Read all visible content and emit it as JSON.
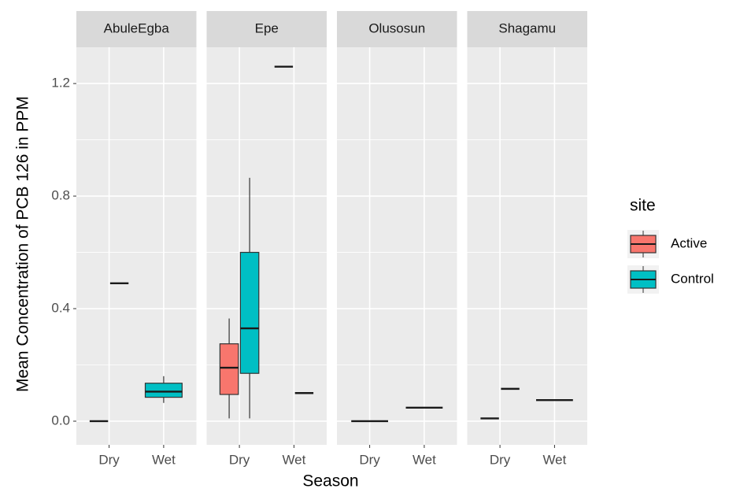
{
  "chart_data": {
    "type": "box",
    "x_label": "Season",
    "y_label": "Mean Concentration of PCB 126 in PPM",
    "categories": [
      "Dry",
      "Wet"
    ],
    "ylim": [
      -0.084,
      1.329
    ],
    "yticks": [
      {
        "value": 0,
        "label": "0.0"
      },
      0.4,
      0.8,
      1.2
    ],
    "minor_yticks": [
      0.2,
      0.6,
      1.0
    ],
    "grid": true,
    "legend": {
      "title": "site",
      "position": "right",
      "items": [
        {
          "name": "Active",
          "color": "#F8766D"
        },
        {
          "name": "Control",
          "color": "#00BFC4"
        }
      ]
    },
    "facets": [
      {
        "name": "AbuleEgba",
        "boxes": [
          {
            "season": "Dry",
            "site": "Active",
            "min": 0.0,
            "q1": 0.0,
            "median": 0.0,
            "q3": 0.0,
            "max": 0.0
          },
          {
            "season": "Dry",
            "site": "Control",
            "min": 0.49,
            "q1": 0.49,
            "median": 0.49,
            "q3": 0.49,
            "max": 0.49
          },
          {
            "season": "Wet",
            "site": "Control",
            "min": 0.065,
            "q1": 0.085,
            "median": 0.105,
            "q3": 0.135,
            "max": 0.16
          }
        ]
      },
      {
        "name": "Epe",
        "boxes": [
          {
            "season": "Dry",
            "site": "Active",
            "min": 0.01,
            "q1": 0.095,
            "median": 0.19,
            "q3": 0.275,
            "max": 0.365
          },
          {
            "season": "Dry",
            "site": "Control",
            "min": 0.01,
            "q1": 0.17,
            "median": 0.33,
            "q3": 0.6,
            "max": 0.865
          },
          {
            "season": "Wet",
            "site": "Active",
            "min": 1.26,
            "q1": 1.26,
            "median": 1.26,
            "q3": 1.26,
            "max": 1.26
          },
          {
            "season": "Wet",
            "site": "Control",
            "min": 0.1,
            "q1": 0.1,
            "median": 0.1,
            "q3": 0.1,
            "max": 0.1
          }
        ]
      },
      {
        "name": "Olusosun",
        "boxes": [
          {
            "season": "Dry",
            "site": "Active",
            "min": 0.0,
            "q1": 0.0,
            "median": 0.0,
            "q3": 0.0,
            "max": 0.0
          },
          {
            "season": "Wet",
            "site": "Active",
            "min": 0.048,
            "q1": 0.048,
            "median": 0.048,
            "q3": 0.048,
            "max": 0.048
          }
        ]
      },
      {
        "name": "Shagamu",
        "boxes": [
          {
            "season": "Dry",
            "site": "Active",
            "min": 0.01,
            "q1": 0.01,
            "median": 0.01,
            "q3": 0.01,
            "max": 0.01
          },
          {
            "season": "Dry",
            "site": "Control",
            "min": 0.115,
            "q1": 0.115,
            "median": 0.115,
            "q3": 0.115,
            "max": 0.115
          },
          {
            "season": "Wet",
            "site": "Active",
            "min": 0.075,
            "q1": 0.075,
            "median": 0.075,
            "q3": 0.075,
            "max": 0.075
          }
        ]
      }
    ]
  }
}
